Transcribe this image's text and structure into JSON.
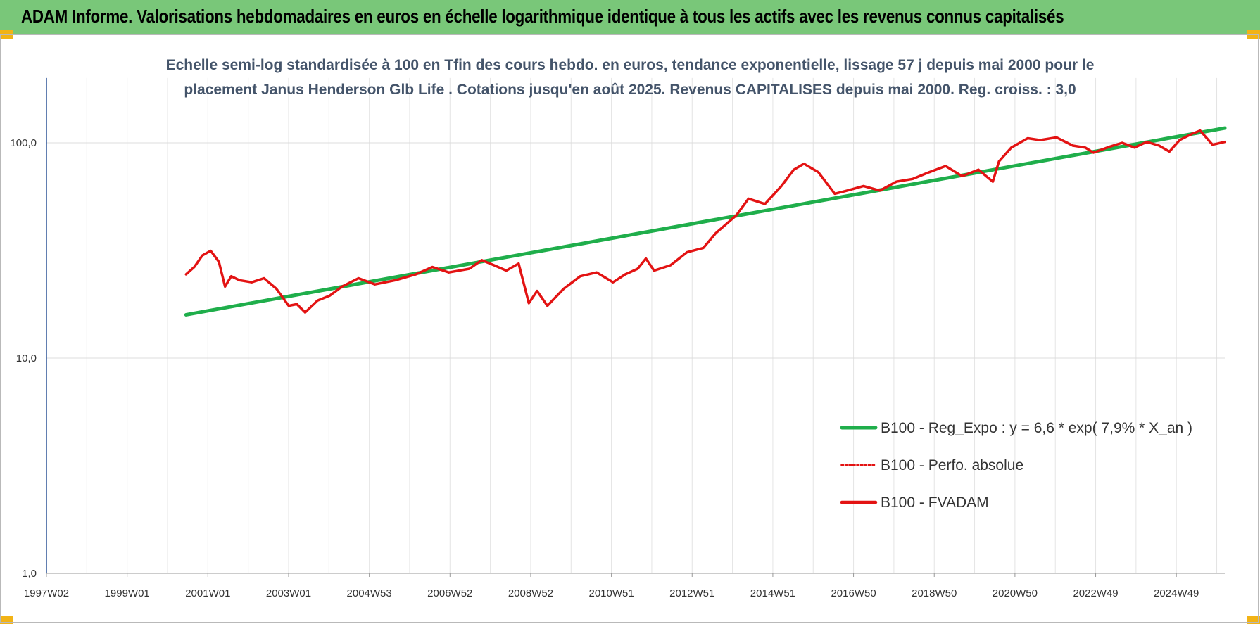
{
  "header": {
    "title": "ADAM Informe. Valorisations hebdomadaires en euros en échelle logarithmique identique à tous les actifs avec les revenus connus capitalisés"
  },
  "colors": {
    "header_bg": "#79c779",
    "regression": "#1fae4b",
    "fvadam": "#e31313",
    "perfo": "#e31313",
    "title": "#44546a",
    "corner": "#f2b316"
  },
  "chart_data": {
    "type": "line",
    "title_line1": "Echelle semi-log standardisée à 100 en Tfin des cours hebdo. en euros, tendance exponentielle, lissage 57 j depuis mai 2000 pour le",
    "title_line2": "placement Janus Henderson Glb Life . Cotations jusqu'en août 2025. Revenus CAPITALISES depuis mai 2000. Reg. croiss. : 3,0",
    "y_scale": "log",
    "ylim": [
      1,
      200
    ],
    "y_ticks": [
      "1,0",
      "10,0",
      "100,0"
    ],
    "x_tick_labels": [
      "1997W02",
      "1999W01",
      "2001W01",
      "2003W01",
      "2004W53",
      "2006W52",
      "2008W52",
      "2010W51",
      "2012W51",
      "2014W51",
      "2016W50",
      "2018W50",
      "2020W50",
      "2022W49",
      "2024W49"
    ],
    "x_range": [
      1997.0,
      2025.7
    ],
    "grid": "vertical and horizontal",
    "legend_position": "bottom-right",
    "series": [
      {
        "name": "B100 - Reg_Expo : y = 6,6 * exp( 7,9% *  X_an )",
        "style": "solid-thick",
        "color": "#1fae4b",
        "x": [
          2000.4,
          2025.7
        ],
        "y": [
          15.9,
          117.0
        ]
      },
      {
        "name": "B100 - Perfo. absolue",
        "style": "dotted",
        "color": "#e31313",
        "x": [],
        "y": []
      },
      {
        "name": "B100 - FVADAM",
        "style": "solid",
        "color": "#e31313",
        "x": [
          2000.4,
          2000.6,
          2000.8,
          2001.0,
          2001.2,
          2001.35,
          2001.5,
          2001.7,
          2002.0,
          2002.3,
          2002.6,
          2002.9,
          2003.1,
          2003.3,
          2003.6,
          2003.9,
          2004.2,
          2004.6,
          2005.0,
          2005.5,
          2006.0,
          2006.4,
          2006.8,
          2007.3,
          2007.6,
          2007.9,
          2008.2,
          2008.5,
          2008.75,
          2008.95,
          2009.2,
          2009.6,
          2010.0,
          2010.4,
          2010.8,
          2011.1,
          2011.4,
          2011.6,
          2011.8,
          2012.2,
          2012.6,
          2013.0,
          2013.3,
          2013.8,
          2014.1,
          2014.5,
          2014.9,
          2015.2,
          2015.45,
          2015.8,
          2016.2,
          2016.5,
          2016.9,
          2017.3,
          2017.7,
          2018.1,
          2018.5,
          2018.9,
          2019.3,
          2019.7,
          2020.05,
          2020.2,
          2020.5,
          2020.9,
          2021.2,
          2021.6,
          2022.0,
          2022.3,
          2022.5,
          2022.9,
          2023.2,
          2023.5,
          2023.8,
          2024.1,
          2024.35,
          2024.6,
          2024.9,
          2025.1,
          2025.4,
          2025.7
        ],
        "y": [
          24.5,
          26.5,
          30.0,
          31.5,
          28.0,
          21.5,
          24.0,
          23.0,
          22.5,
          23.5,
          21.0,
          17.5,
          17.8,
          16.3,
          18.5,
          19.5,
          21.5,
          23.5,
          22.0,
          23.0,
          24.5,
          26.5,
          25.0,
          26.0,
          28.5,
          27.0,
          25.5,
          27.5,
          18.0,
          20.5,
          17.5,
          21.0,
          24.0,
          25.0,
          22.5,
          24.5,
          26.0,
          29.0,
          25.5,
          27.0,
          31.0,
          32.5,
          38.0,
          46.0,
          55.0,
          52.0,
          63.0,
          75.0,
          80.0,
          73.0,
          58.0,
          60.0,
          63.0,
          60.0,
          66.0,
          68.0,
          73.0,
          78.0,
          70.0,
          75.0,
          66.0,
          82.0,
          95.0,
          105.0,
          103.0,
          106.0,
          97.0,
          95.0,
          90.0,
          96.0,
          100.0,
          95.0,
          101.0,
          97.0,
          91.0,
          103.0,
          110.0,
          114.0,
          98.0,
          101.0
        ]
      }
    ]
  }
}
